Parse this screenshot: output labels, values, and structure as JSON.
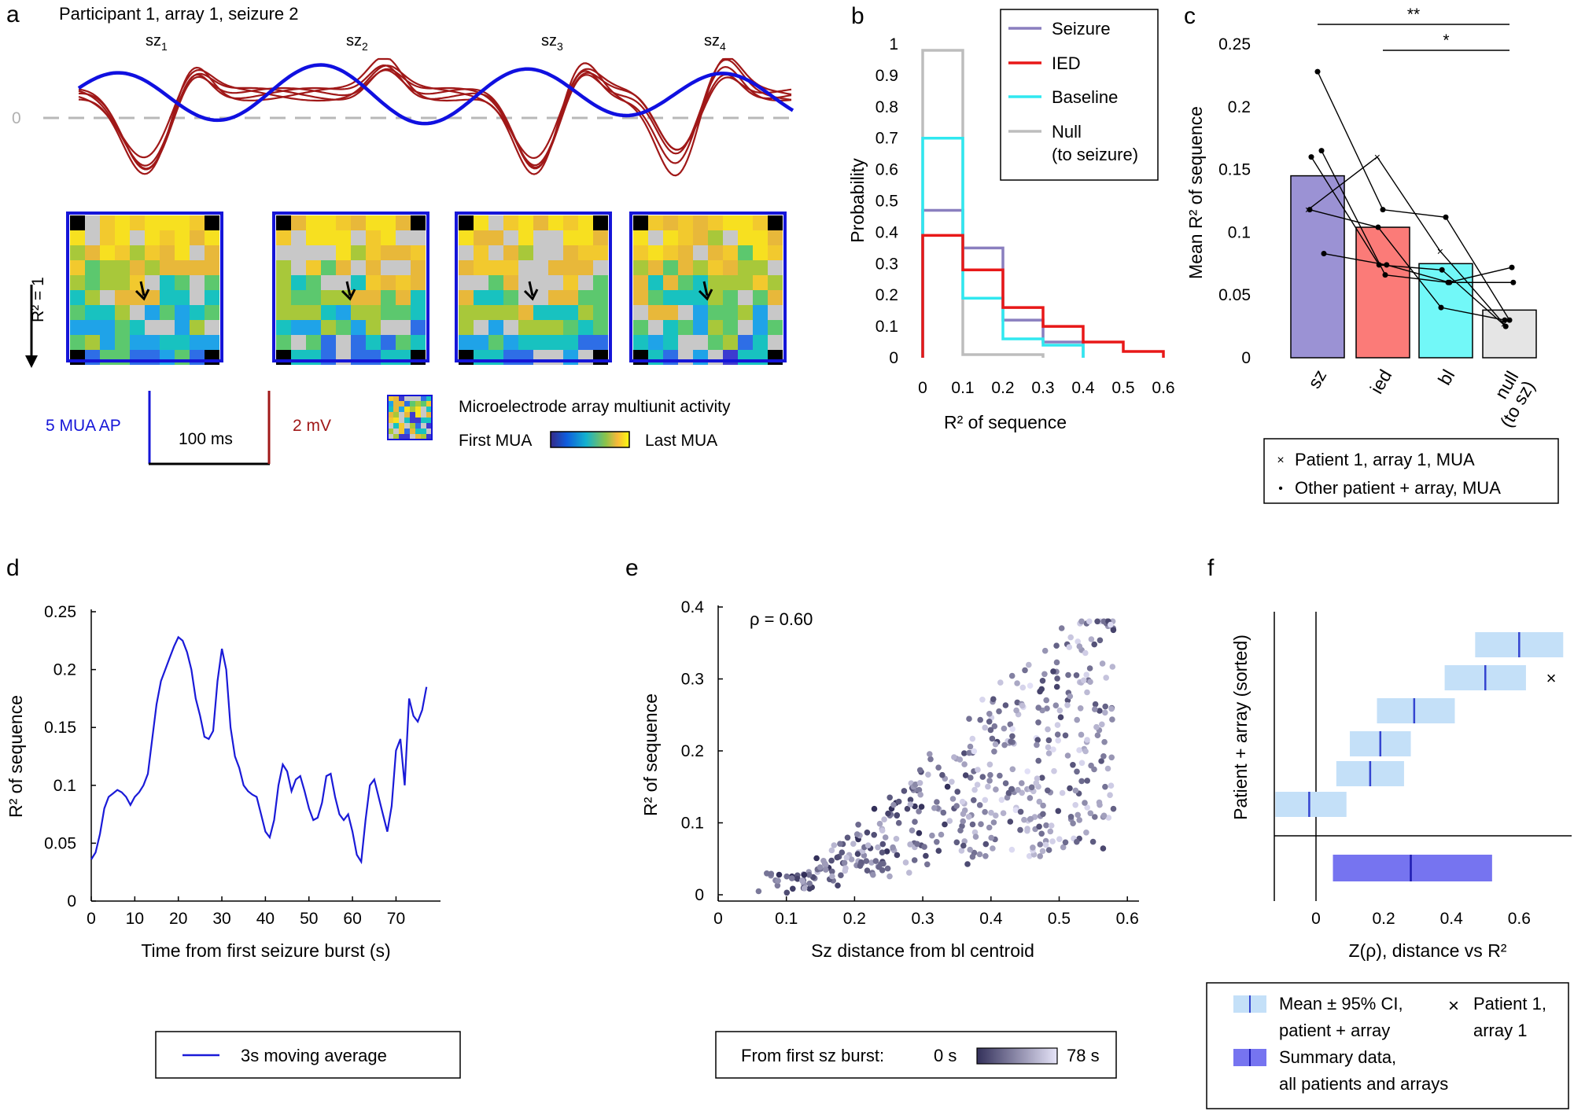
{
  "panels": {
    "a": "a",
    "b": "b",
    "c": "c",
    "d": "d",
    "e": "e",
    "f": "f"
  },
  "panel_a": {
    "title": "Participant 1, array 1, seizure 2",
    "zero_label": "0",
    "burst_labels": [
      "sz1",
      "sz2",
      "sz3",
      "sz4"
    ],
    "r2_axis_label": "R² = 1",
    "scale_mua": "5 MUA AP",
    "scale_time": "100 ms",
    "scale_mv": "2 mV",
    "legend_title": "Microelectrode array multiunit activity",
    "legend_first": "First MUA",
    "legend_last": "Last MUA",
    "colors": {
      "mua_trace": "#1010e0",
      "lfp_trace": "#a01818",
      "array_border": "#1515d8"
    },
    "arrow_glyph": "arrow-icon"
  },
  "chart_data": [
    {
      "id": "b",
      "type": "line",
      "subtype": "step-histogram",
      "xlabel": "R² of sequence",
      "ylabel": "Probability",
      "xlim": [
        0,
        0.6
      ],
      "ylim": [
        0,
        1
      ],
      "xticks": [
        "0",
        "0.1",
        "0.2",
        "0.3",
        "0.4",
        "0.5",
        "0.6"
      ],
      "yticks": [
        "0",
        "0.1",
        "0.2",
        "0.3",
        "0.4",
        "0.5",
        "0.6",
        "0.7",
        "0.8",
        "0.9",
        "1"
      ],
      "bin_edges": [
        0,
        0.1,
        0.2,
        0.3,
        0.4,
        0.5,
        0.6
      ],
      "series": [
        {
          "name": "Seizure",
          "color": "#8a7fbf",
          "values": [
            0.47,
            0.35,
            0.12,
            0.05,
            0,
            0
          ]
        },
        {
          "name": "IED",
          "color": "#e81818",
          "values": [
            0.39,
            0.28,
            0.16,
            0.1,
            0.05,
            0.02
          ]
        },
        {
          "name": "Baseline",
          "color": "#30e8f0",
          "values": [
            0.7,
            0.19,
            0.06,
            0.04,
            0,
            0
          ]
        },
        {
          "name": "Null",
          "name2": "(to seizure)",
          "color": "#bdbdbd",
          "values": [
            0.98,
            0.01,
            0.01,
            0,
            0,
            0
          ]
        }
      ],
      "legend_position": "top-right"
    },
    {
      "id": "c",
      "type": "bar",
      "ylabel": "Mean R² of sequence",
      "ylim": [
        0,
        0.25
      ],
      "yticks": [
        "0",
        "0.05",
        "0.1",
        "0.15",
        "0.2",
        "0.25"
      ],
      "categories": [
        "sz",
        "ied",
        "bl",
        "null (to sz)"
      ],
      "category_lines": [
        [
          "sz"
        ],
        [
          "ied"
        ],
        [
          "bl"
        ],
        [
          "null",
          "(to sz)"
        ]
      ],
      "values": [
        0.145,
        0.104,
        0.075,
        0.038
      ],
      "colors": [
        "#9b92d4",
        "#fb7b78",
        "#72f8f8",
        "#e5e5e5"
      ],
      "paired_points": [
        {
          "marker": "x",
          "values": [
            0.118,
            0.16,
            0.085,
            0.027
          ]
        },
        {
          "marker": "dot",
          "values": [
            0.228,
            0.118,
            0.112,
            0.03
          ]
        },
        {
          "marker": "dot",
          "values": [
            0.165,
            0.066,
            0.06,
            0.072
          ]
        },
        {
          "marker": "dot",
          "values": [
            0.16,
            0.074,
            0.07,
            0.025
          ]
        },
        {
          "marker": "dot",
          "values": [
            0.118,
            0.104,
            0.04,
            0.03
          ]
        },
        {
          "marker": "dot",
          "values": [
            0.083,
            0.074,
            0.06,
            0.06
          ]
        }
      ],
      "significance": [
        {
          "from": "sz",
          "to": "null (to sz)",
          "label": "**"
        },
        {
          "from": "ied",
          "to": "null (to sz)",
          "label": "*"
        }
      ],
      "legend": [
        "Patient 1, array 1, MUA",
        "Other patient + array, MUA"
      ],
      "legend_markers": [
        "×",
        "•"
      ]
    },
    {
      "id": "d",
      "type": "line",
      "xlabel": "Time from first seizure burst (s)",
      "ylabel": "R² of sequence",
      "xlim": [
        0,
        80
      ],
      "ylim": [
        0,
        0.25
      ],
      "xticks": [
        "0",
        "10",
        "20",
        "30",
        "40",
        "50",
        "60",
        "70"
      ],
      "yticks": [
        "0",
        "0.05",
        "0.1",
        "0.15",
        "0.2",
        "0.25"
      ],
      "series": [
        {
          "name": "3s moving average",
          "color": "#1a1ad8",
          "x": [
            0,
            1,
            2,
            3,
            4,
            5,
            6,
            7,
            8,
            9,
            10,
            11,
            12,
            13,
            14,
            15,
            16,
            17,
            18,
            19,
            20,
            21,
            22,
            23,
            24,
            25,
            26,
            27,
            28,
            29,
            30,
            31,
            32,
            33,
            34,
            35,
            36,
            37,
            38,
            39,
            40,
            41,
            42,
            43,
            44,
            45,
            46,
            47,
            48,
            49,
            50,
            51,
            52,
            53,
            54,
            55,
            56,
            57,
            58,
            59,
            60,
            61,
            62,
            63,
            64,
            65,
            66,
            67,
            68,
            69,
            70,
            71,
            72,
            73,
            74,
            75,
            76,
            77
          ],
          "y": [
            0.036,
            0.042,
            0.058,
            0.08,
            0.09,
            0.093,
            0.096,
            0.094,
            0.09,
            0.083,
            0.09,
            0.094,
            0.1,
            0.11,
            0.14,
            0.17,
            0.19,
            0.2,
            0.21,
            0.22,
            0.228,
            0.225,
            0.215,
            0.2,
            0.175,
            0.16,
            0.142,
            0.14,
            0.147,
            0.19,
            0.218,
            0.2,
            0.15,
            0.125,
            0.115,
            0.1,
            0.095,
            0.092,
            0.09,
            0.075,
            0.06,
            0.055,
            0.07,
            0.1,
            0.118,
            0.112,
            0.095,
            0.105,
            0.108,
            0.095,
            0.08,
            0.07,
            0.072,
            0.085,
            0.108,
            0.11,
            0.09,
            0.075,
            0.07,
            0.075,
            0.06,
            0.04,
            0.034,
            0.07,
            0.1,
            0.105,
            0.09,
            0.075,
            0.06,
            0.082,
            0.13,
            0.14,
            0.1,
            0.175,
            0.16,
            0.155,
            0.165,
            0.185
          ]
        }
      ]
    },
    {
      "id": "e",
      "type": "scatter",
      "xlabel": "Sz distance from bl centroid",
      "ylabel": "R² of sequence",
      "xlim": [
        0,
        0.6
      ],
      "ylim": [
        0,
        0.4
      ],
      "xticks": [
        "0",
        "0.1",
        "0.2",
        "0.3",
        "0.4",
        "0.5",
        "0.6"
      ],
      "yticks": [
        "0",
        "0.1",
        "0.2",
        "0.3",
        "0.4"
      ],
      "annotation": "ρ = 0.60",
      "color_scale": {
        "label": "From first sz burst:",
        "min": "0 s",
        "max": "78 s",
        "from": "#33305a",
        "to": "#e2e0f6"
      },
      "n_points": 480,
      "seed": 7
    },
    {
      "id": "f",
      "type": "scatter",
      "subtype": "interval-plot",
      "xlabel": "Z(ρ), distance vs R²",
      "ylabel": "Patient + array (sorted)",
      "xlim": [
        -0.12,
        0.72
      ],
      "xticks": [
        "0",
        "0.2",
        "0.4",
        "0.6"
      ],
      "rows": [
        {
          "mean": 0.6,
          "lo": 0.47,
          "hi": 0.73
        },
        {
          "mean": 0.5,
          "lo": 0.38,
          "hi": 0.62,
          "marker": "×"
        },
        {
          "mean": 0.29,
          "lo": 0.18,
          "hi": 0.41
        },
        {
          "mean": 0.19,
          "lo": 0.1,
          "hi": 0.28
        },
        {
          "mean": 0.16,
          "lo": 0.06,
          "hi": 0.26
        },
        {
          "mean": -0.02,
          "lo": -0.12,
          "hi": 0.09
        }
      ],
      "summary": {
        "mean": 0.28,
        "lo": 0.05,
        "hi": 0.52
      },
      "colors": {
        "row": "#c4e0f8",
        "row_mean": "#3545d0",
        "summary": "#7674f0",
        "summary_mean": "#1d1bb0"
      },
      "legend": {
        "ci_line1": "Mean ± 95% CI,",
        "ci_line2": "patient + array",
        "patient_line1": "Patient 1,",
        "patient_line2": "array 1",
        "summary_line1": "Summary data,",
        "summary_line2": "all patients and arrays",
        "patient_marker": "×"
      }
    }
  ],
  "legend_d": "3s moving average"
}
